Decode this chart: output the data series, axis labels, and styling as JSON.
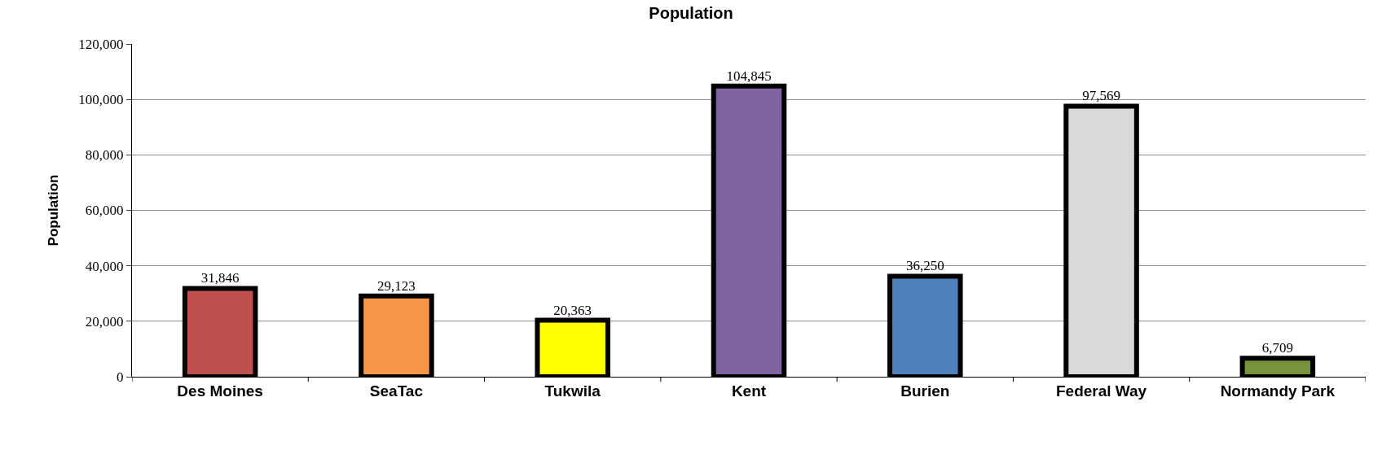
{
  "chart_data": {
    "type": "bar",
    "title": "Population",
    "ylabel": "Population",
    "categories": [
      "Des Moines",
      "SeaTac",
      "Tukwila",
      "Kent",
      "Burien",
      "Federal Way",
      "Normandy Park"
    ],
    "values": [
      31846,
      29123,
      20363,
      104845,
      36250,
      97569,
      6709
    ],
    "colors": [
      "#c0504d",
      "#f79646",
      "#ffff00",
      "#8064a2",
      "#4f81bd",
      "#d9d9d9",
      "#77933c"
    ],
    "ylim": [
      0,
      120000
    ],
    "yticks": [
      0,
      {
        "value": 20000,
        "label": "20,000"
      },
      {
        "value": 40000,
        "label": "40,000"
      },
      {
        "value": 60000,
        "label": "60,000"
      },
      {
        "value": 80000,
        "label": "80,000"
      },
      {
        "value": 100000,
        "label": "100,000"
      },
      {
        "value": 120000,
        "label": "120,000"
      }
    ],
    "value_labels": [
      "31,846",
      "29,123",
      "20,363",
      "104,845",
      "36,250",
      "97,569",
      "6,709"
    ],
    "grid": "y",
    "legend": false
  }
}
